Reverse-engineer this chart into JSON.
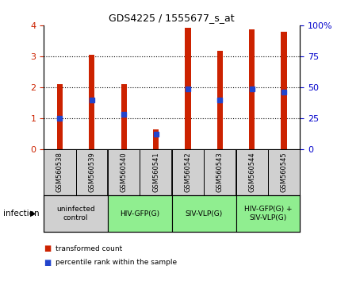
{
  "title": "GDS4225 / 1555677_s_at",
  "samples": [
    "GSM560538",
    "GSM560539",
    "GSM560540",
    "GSM560541",
    "GSM560542",
    "GSM560543",
    "GSM560544",
    "GSM560545"
  ],
  "red_values": [
    2.1,
    3.05,
    2.1,
    0.62,
    3.92,
    3.18,
    3.87,
    3.8
  ],
  "blue_values": [
    1.0,
    1.58,
    1.12,
    0.48,
    1.95,
    1.58,
    1.95,
    1.85
  ],
  "ylim_left": [
    0,
    4
  ],
  "ylim_right": [
    0,
    100
  ],
  "yticks_left": [
    0,
    1,
    2,
    3,
    4
  ],
  "yticks_right": [
    0,
    25,
    50,
    75,
    100
  ],
  "ytick_labels_right": [
    "0",
    "25",
    "50",
    "75",
    "100%"
  ],
  "bar_color": "#cc2200",
  "blue_color": "#2244cc",
  "groups": [
    {
      "label": "uninfected\ncontrol",
      "start": 0,
      "end": 2,
      "color": "#d0d0d0"
    },
    {
      "label": "HIV-GFP(G)",
      "start": 2,
      "end": 4,
      "color": "#90ee90"
    },
    {
      "label": "SIV-VLP(G)",
      "start": 4,
      "end": 6,
      "color": "#90ee90"
    },
    {
      "label": "HIV-GFP(G) +\nSIV-VLP(G)",
      "start": 6,
      "end": 8,
      "color": "#90ee90"
    }
  ],
  "xlabel_infection": "infection",
  "legend_red": "transformed count",
  "legend_blue": "percentile rank within the sample",
  "bar_width": 0.18,
  "blue_marker_size": 5,
  "left_label_color": "#cc2200",
  "right_label_color": "#0000cc",
  "bg_color": "#ffffff"
}
